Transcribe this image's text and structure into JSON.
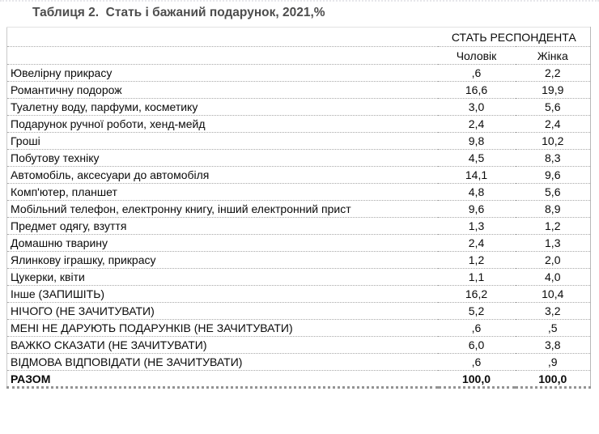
{
  "page": {
    "title": "Таблиця 2.  Стать і бажаний подарунок, 2021,%"
  },
  "table": {
    "group_header": "СТАТЬ РЕСПОНДЕНТА",
    "columns": [
      "Чоловік",
      "Жінка"
    ],
    "rows": [
      {
        "label": "Ювелірну прикрасу",
        "male": ",6",
        "female": "2,2"
      },
      {
        "label": "Романтичну подорож",
        "male": "16,6",
        "female": "19,9"
      },
      {
        "label": "Туалетну воду, парфуми, косметику",
        "male": "3,0",
        "female": "5,6"
      },
      {
        "label": "Подарунок ручної роботи, хенд-мейд",
        "male": "2,4",
        "female": "2,4"
      },
      {
        "label": "Гроші",
        "male": "9,8",
        "female": "10,2"
      },
      {
        "label": "Побутову техніку",
        "male": "4,5",
        "female": "8,3"
      },
      {
        "label": "Автомобіль, аксесуари до автомобіля",
        "male": "14,1",
        "female": "9,6"
      },
      {
        "label": "Комп'ютер, планшет",
        "male": "4,8",
        "female": "5,6"
      },
      {
        "label": "Мобільний телефон, електронну книгу, інший електронний прист",
        "male": "9,6",
        "female": "8,9"
      },
      {
        "label": "Предмет одягу, взуття",
        "male": "1,3",
        "female": "1,2"
      },
      {
        "label": "Домашню тварину",
        "male": "2,4",
        "female": "1,3"
      },
      {
        "label": "Ялинкову іграшку, прикрасу",
        "male": "1,2",
        "female": "2,0"
      },
      {
        "label": "Цукерки, квіти",
        "male": "1,1",
        "female": "4,0"
      },
      {
        "label": "Інше (ЗАПИШІТЬ)",
        "male": "16,2",
        "female": "10,4"
      },
      {
        "label": "НІЧОГО (НЕ ЗАЧИТУВАТИ)",
        "male": "5,2",
        "female": "3,2"
      },
      {
        "label": "МЕНІ НЕ ДАРУЮТЬ ПОДАРУНКІВ (НЕ ЗАЧИТУВАТИ)",
        "male": ",6",
        "female": ",5"
      },
      {
        "label": "ВАЖКО СКАЗАТИ (НЕ ЗАЧИТУВАТИ)",
        "male": "6,0",
        "female": "3,8"
      },
      {
        "label": "ВІДМОВА ВІДПОВІДАТИ (НЕ ЗАЧИТУВАТИ)",
        "male": ",6",
        "female": ",9"
      },
      {
        "label": "РАЗОМ",
        "male": "100,0",
        "female": "100,0"
      }
    ]
  },
  "colors": {
    "background": "#ffffff",
    "title_text": "#4d4d4d",
    "body_text": "#0a0a0a",
    "row_separator": "#a8a8a8",
    "outer_border": "#c9c9c9",
    "bottom_border": "#949494"
  }
}
